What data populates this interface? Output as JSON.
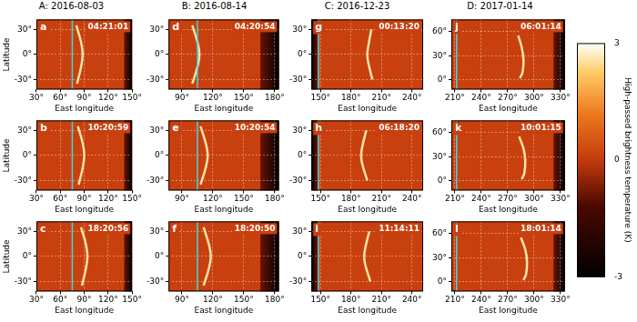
{
  "chart_data": [
    {
      "type": "map",
      "title": "A: 2016-08-03",
      "panel": "a",
      "time": "04:21:01",
      "xlabel": "East longitude",
      "ylabel": "Latitude",
      "xlim": [
        30,
        150
      ],
      "xticks": [
        {
          "value": 30,
          "label": "30°"
        },
        {
          "value": 60,
          "label": "60°"
        },
        {
          "value": 90,
          "label": "90°"
        },
        {
          "value": 120,
          "label": "120°"
        },
        {
          "value": 150,
          "label": "150°"
        }
      ],
      "ylim": [
        -42,
        42
      ],
      "yticks": [
        {
          "value": -30,
          "label": "-30°"
        },
        {
          "value": 0,
          "label": "0°"
        },
        {
          "value": 30,
          "label": "30°"
        }
      ],
      "grid": true,
      "cyan_lon": 75,
      "no_data_lon": [
        140,
        150
      ],
      "wave": {
        "lon": [
          80,
          86,
          88,
          86,
          81
        ],
        "lat": [
          35,
          15,
          0,
          -15,
          -35
        ]
      }
    },
    {
      "type": "map",
      "panel": "b",
      "time": "10:20:59",
      "xlabel": "East longitude",
      "ylabel": "Latitude",
      "xlim": [
        30,
        150
      ],
      "xticks": [
        {
          "value": 30,
          "label": "30°"
        },
        {
          "value": 60,
          "label": "60°"
        },
        {
          "value": 90,
          "label": "90°"
        },
        {
          "value": 120,
          "label": "120°"
        },
        {
          "value": 150,
          "label": "150°"
        }
      ],
      "ylim": [
        -42,
        42
      ],
      "yticks": [
        {
          "value": -30,
          "label": "-30°"
        },
        {
          "value": 0,
          "label": "0°"
        },
        {
          "value": 30,
          "label": "30°"
        }
      ],
      "grid": true,
      "cyan_lon": 75,
      "no_data_lon": [
        140,
        150
      ],
      "wave": {
        "lon": [
          82,
          88,
          90,
          88,
          83
        ],
        "lat": [
          35,
          15,
          0,
          -15,
          -35
        ]
      }
    },
    {
      "type": "map",
      "panel": "c",
      "time": "18:20:56",
      "xlabel": "East longitude",
      "ylabel": "Latitude",
      "xlim": [
        30,
        150
      ],
      "xticks": [
        {
          "value": 30,
          "label": "30°"
        },
        {
          "value": 60,
          "label": "60°"
        },
        {
          "value": 90,
          "label": "90°"
        },
        {
          "value": 120,
          "label": "120°"
        },
        {
          "value": 150,
          "label": "150°"
        }
      ],
      "ylim": [
        -42,
        42
      ],
      "yticks": [
        {
          "value": -30,
          "label": "-30°"
        },
        {
          "value": 0,
          "label": "0°"
        },
        {
          "value": 30,
          "label": "30°"
        }
      ],
      "grid": true,
      "cyan_lon": 75,
      "no_data_lon": [
        140,
        150
      ],
      "wave": {
        "lon": [
          86,
          92,
          94,
          92,
          87
        ],
        "lat": [
          35,
          15,
          0,
          -15,
          -35
        ]
      }
    },
    {
      "type": "map",
      "title": "B: 2016-08-14",
      "panel": "d",
      "time": "04:20:54",
      "xlabel": "East longitude",
      "xlim": [
        77,
        184
      ],
      "xticks": [
        {
          "value": 90,
          "label": "90°"
        },
        {
          "value": 120,
          "label": "120°"
        },
        {
          "value": 150,
          "label": "150°"
        },
        {
          "value": 180,
          "label": "180°"
        }
      ],
      "ylim": [
        -42,
        42
      ],
      "yticks": [
        {
          "value": -30,
          "label": "-30°"
        },
        {
          "value": 0,
          "label": "0°"
        },
        {
          "value": 30,
          "label": "30°"
        }
      ],
      "grid": true,
      "cyan_lon": 105,
      "no_data_lon": [
        166,
        184
      ],
      "wave": {
        "lon": [
          100,
          105,
          107,
          105,
          100
        ],
        "lat": [
          35,
          15,
          0,
          -15,
          -35
        ]
      }
    },
    {
      "type": "map",
      "panel": "e",
      "time": "10:20:54",
      "xlabel": "East longitude",
      "xlim": [
        77,
        184
      ],
      "xticks": [
        {
          "value": 90,
          "label": "90°"
        },
        {
          "value": 120,
          "label": "120°"
        },
        {
          "value": 150,
          "label": "150°"
        },
        {
          "value": 180,
          "label": "180°"
        }
      ],
      "ylim": [
        -42,
        42
      ],
      "yticks": [
        {
          "value": -30,
          "label": "-30°"
        },
        {
          "value": 0,
          "label": "0°"
        },
        {
          "value": 30,
          "label": "30°"
        }
      ],
      "grid": true,
      "cyan_lon": 105,
      "no_data_lon": [
        166,
        184
      ],
      "wave": {
        "lon": [
          108,
          113,
          115,
          113,
          108
        ],
        "lat": [
          35,
          15,
          0,
          -15,
          -35
        ]
      }
    },
    {
      "type": "map",
      "panel": "f",
      "time": "18:20:50",
      "xlabel": "East longitude",
      "xlim": [
        77,
        184
      ],
      "xticks": [
        {
          "value": 90,
          "label": "90°"
        },
        {
          "value": 120,
          "label": "120°"
        },
        {
          "value": 150,
          "label": "150°"
        },
        {
          "value": 180,
          "label": "180°"
        }
      ],
      "ylim": [
        -42,
        42
      ],
      "yticks": [
        {
          "value": -30,
          "label": "-30°"
        },
        {
          "value": 0,
          "label": "0°"
        },
        {
          "value": 30,
          "label": "30°"
        }
      ],
      "grid": true,
      "cyan_lon": 105,
      "no_data_lon": [
        166,
        184
      ],
      "wave": {
        "lon": [
          111,
          116,
          118,
          116,
          111
        ],
        "lat": [
          35,
          15,
          0,
          -15,
          -35
        ]
      }
    },
    {
      "type": "map",
      "title": "C: 2016-12-23",
      "panel": "g",
      "time": "00:13:20",
      "xlabel": "East longitude",
      "xlim": [
        141,
        251
      ],
      "xticks": [
        {
          "value": 150,
          "label": "150°"
        },
        {
          "value": 180,
          "label": "180°"
        },
        {
          "value": 210,
          "label": "210°"
        },
        {
          "value": 240,
          "label": "240°"
        }
      ],
      "ylim": [
        -42,
        42
      ],
      "yticks": [
        {
          "value": -30,
          "label": "-30°"
        },
        {
          "value": 0,
          "label": "0°"
        },
        {
          "value": 30,
          "label": "30°"
        }
      ],
      "grid": true,
      "cyan_lon": 148,
      "no_data_lon": [
        141,
        147
      ],
      "wave": {
        "lon": [
          200,
          197,
          196,
          197,
          201
        ],
        "lat": [
          30,
          10,
          0,
          -10,
          -30
        ]
      }
    },
    {
      "type": "map",
      "panel": "h",
      "time": "06:18:20",
      "xlabel": "East longitude",
      "xlim": [
        141,
        251
      ],
      "xticks": [
        {
          "value": 150,
          "label": "150°"
        },
        {
          "value": 180,
          "label": "180°"
        },
        {
          "value": 210,
          "label": "210°"
        },
        {
          "value": 240,
          "label": "240°"
        }
      ],
      "ylim": [
        -42,
        42
      ],
      "yticks": [
        {
          "value": -30,
          "label": "-30°"
        },
        {
          "value": 0,
          "label": "0°"
        },
        {
          "value": 30,
          "label": "30°"
        }
      ],
      "grid": true,
      "cyan_lon": 148,
      "no_data_lon": [
        141,
        147
      ],
      "wave": {
        "lon": [
          195,
          191,
          190,
          191,
          196
        ],
        "lat": [
          30,
          10,
          0,
          -10,
          -30
        ]
      }
    },
    {
      "type": "map",
      "panel": "i",
      "time": "11:14:11",
      "xlabel": "East longitude",
      "xlim": [
        141,
        251
      ],
      "xticks": [
        {
          "value": 150,
          "label": "150°"
        },
        {
          "value": 180,
          "label": "180°"
        },
        {
          "value": 210,
          "label": "210°"
        },
        {
          "value": 240,
          "label": "240°"
        }
      ],
      "ylim": [
        -42,
        42
      ],
      "yticks": [
        {
          "value": -30,
          "label": "-30°"
        },
        {
          "value": 0,
          "label": "0°"
        },
        {
          "value": 30,
          "label": "30°"
        }
      ],
      "grid": true,
      "cyan_lon": 148,
      "no_data_lon": [
        141,
        147
      ],
      "wave": {
        "lon": [
          198,
          194,
          193,
          194,
          199
        ],
        "lat": [
          30,
          10,
          0,
          -10,
          -30
        ]
      }
    },
    {
      "type": "map",
      "title": "D: 2017-01-14",
      "panel": "j",
      "time": "06:01:14",
      "xlabel": "East longitude",
      "xlim": [
        206,
        335
      ],
      "xticks": [
        {
          "value": 210,
          "label": "210°"
        },
        {
          "value": 240,
          "label": "240°"
        },
        {
          "value": 270,
          "label": "270°"
        },
        {
          "value": 300,
          "label": "300°"
        },
        {
          "value": 330,
          "label": "330°"
        }
      ],
      "ylim": [
        -12,
        75
      ],
      "yticks": [
        {
          "value": 0,
          "label": "0°"
        },
        {
          "value": 30,
          "label": "30°"
        },
        {
          "value": 60,
          "label": "60°"
        }
      ],
      "grid": true,
      "cyan_lon": 212,
      "no_data_lon": [
        322,
        335
      ],
      "wave": {
        "lon": [
          282,
          286,
          288,
          287,
          284
        ],
        "lat": [
          55,
          40,
          25,
          10,
          2
        ]
      }
    },
    {
      "type": "map",
      "panel": "k",
      "time": "10:01:15",
      "xlabel": "East longitude",
      "xlim": [
        206,
        335
      ],
      "xticks": [
        {
          "value": 210,
          "label": "210°"
        },
        {
          "value": 240,
          "label": "240°"
        },
        {
          "value": 270,
          "label": "270°"
        },
        {
          "value": 300,
          "label": "300°"
        },
        {
          "value": 330,
          "label": "330°"
        }
      ],
      "ylim": [
        -12,
        75
      ],
      "yticks": [
        {
          "value": 0,
          "label": "0°"
        },
        {
          "value": 30,
          "label": "30°"
        },
        {
          "value": 60,
          "label": "60°"
        }
      ],
      "grid": true,
      "cyan_lon": 212,
      "no_data_lon": [
        322,
        335
      ],
      "wave": {
        "lon": [
          283,
          288,
          290,
          289,
          286
        ],
        "lat": [
          55,
          40,
          25,
          10,
          2
        ]
      }
    },
    {
      "type": "map",
      "panel": "l",
      "time": "18:01:14",
      "xlabel": "East longitude",
      "xlim": [
        206,
        335
      ],
      "xticks": [
        {
          "value": 210,
          "label": "210°"
        },
        {
          "value": 240,
          "label": "240°"
        },
        {
          "value": 270,
          "label": "270°"
        },
        {
          "value": 300,
          "label": "300°"
        },
        {
          "value": 330,
          "label": "330°"
        }
      ],
      "ylim": [
        -12,
        75
      ],
      "yticks": [
        {
          "value": 0,
          "label": "0°"
        },
        {
          "value": 30,
          "label": "30°"
        },
        {
          "value": 60,
          "label": "60°"
        }
      ],
      "grid": true,
      "cyan_lon": 212,
      "no_data_lon": [
        322,
        335
      ],
      "wave": {
        "lon": [
          285,
          290,
          292,
          291,
          288
        ],
        "lat": [
          55,
          40,
          25,
          10,
          2
        ]
      }
    },
    {
      "type": "colorbar",
      "ylabel": "High-passed brightness temperature (K)",
      "ylim": [
        -3,
        3
      ],
      "yticks": [
        -3,
        0,
        3
      ]
    }
  ]
}
